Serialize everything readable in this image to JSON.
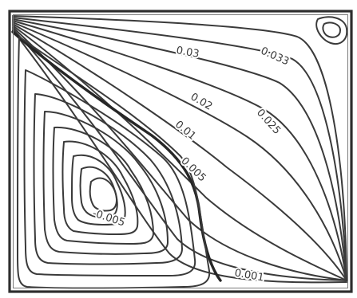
{
  "chart_data": {
    "type": "contour",
    "title": "",
    "xlabel": "",
    "ylabel": "",
    "grid": false,
    "legend": "none",
    "line_color": "#3a3a3a",
    "background_color": "#ffffff",
    "contour_labels": [
      {
        "id": "l0033",
        "text": "0.033"
      },
      {
        "id": "l003",
        "text": "0.03"
      },
      {
        "id": "l0025",
        "text": "0.025"
      },
      {
        "id": "l002",
        "text": "0.02"
      },
      {
        "id": "l001",
        "text": "0.01"
      },
      {
        "id": "l0005",
        "text": "0.005"
      },
      {
        "id": "ln0005",
        "text": "-0.005"
      },
      {
        "id": "l0001",
        "text": "0.001"
      }
    ]
  }
}
